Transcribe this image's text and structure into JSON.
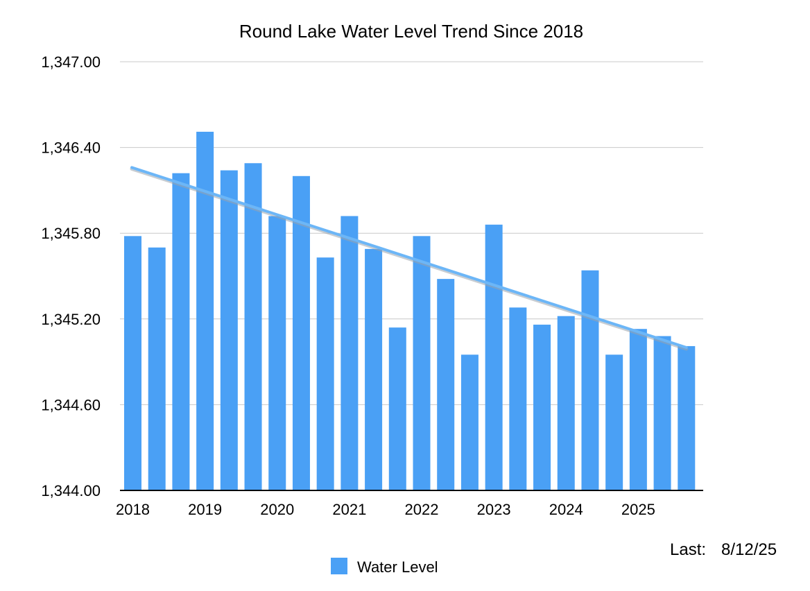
{
  "chart_data": {
    "type": "bar",
    "title": "Round Lake Water Level Trend Since 2018",
    "xlabel": "",
    "ylabel": "",
    "ylim": [
      1344.0,
      1347.0
    ],
    "yticks": [
      "1,344.00",
      "1,344.60",
      "1,345.20",
      "1,345.80",
      "1,346.40",
      "1,347.00"
    ],
    "ytick_values": [
      1344.0,
      1344.6,
      1345.2,
      1345.8,
      1346.4,
      1347.0
    ],
    "xtick_labels": [
      {
        "label": "2018",
        "bar_index": 0
      },
      {
        "label": "2019",
        "bar_index": 3
      },
      {
        "label": "2020",
        "bar_index": 6
      },
      {
        "label": "2021",
        "bar_index": 9
      },
      {
        "label": "2022",
        "bar_index": 12
      },
      {
        "label": "2023",
        "bar_index": 15
      },
      {
        "label": "2024",
        "bar_index": 18
      },
      {
        "label": "2025",
        "bar_index": 21
      }
    ],
    "series": [
      {
        "name": "Water Level",
        "color": "#4aa0f5",
        "values": [
          1345.78,
          1345.7,
          1346.22,
          1346.51,
          1346.24,
          1346.29,
          1345.92,
          1346.2,
          1345.63,
          1345.92,
          1345.69,
          1345.14,
          1345.78,
          1345.48,
          1344.95,
          1345.86,
          1345.28,
          1345.16,
          1345.22,
          1345.54,
          1344.95,
          1345.13,
          1345.08,
          1345.01
        ]
      }
    ],
    "trendline": {
      "color": "#6cb6f7",
      "start": 1346.26,
      "end": 1345.0
    },
    "grid": true,
    "legend_position": "bottom-center"
  },
  "footnote": {
    "label": "Last:",
    "date": "8/12/25"
  }
}
